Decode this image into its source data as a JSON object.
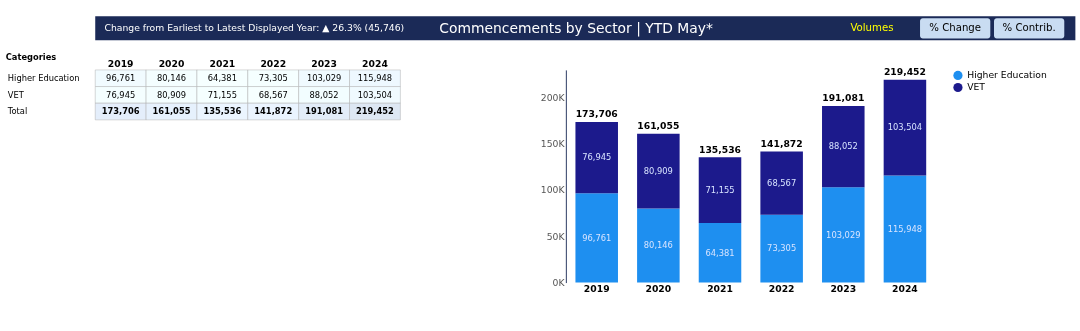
{
  "chart_data": [
    {
      "type": "heatmap",
      "ylabel": "Categories",
      "categories": [
        "2019",
        "2020",
        "2021",
        "2022",
        "2023",
        "2024"
      ],
      "y_categories": [
        "Higher Education",
        "VET",
        "Total"
      ],
      "cells": [
        [
          96761,
          80146,
          64381,
          73305,
          103029,
          115948
        ],
        [
          76945,
          80909,
          71155,
          68567,
          88052,
          103504
        ],
        [
          173706,
          161055,
          135536,
          141872,
          191081,
          219452
        ]
      ],
      "cell_labels": [
        [
          "96,761",
          "80,146",
          "64,381",
          "73,305",
          "103,029",
          "115,948"
        ],
        [
          "76,945",
          "80,909",
          "71,155",
          "68,567",
          "88,052",
          "103,504"
        ],
        [
          "173,706",
          "161,055",
          "135,536",
          "141,872",
          "191,081",
          "219,452"
        ]
      ]
    },
    {
      "type": "bar",
      "title": "Commencements by Sector | YTD May*",
      "categories": [
        "2019",
        "2020",
        "2021",
        "2022",
        "2023",
        "2024"
      ],
      "series": [
        {
          "name": "Higher Education",
          "color": "#1e8ff0",
          "values": [
            96761,
            80146,
            64381,
            73305,
            103029,
            115948
          ],
          "value_labels": [
            "96,761",
            "80,146",
            "64,381",
            "73,305",
            "103,029",
            "115,948"
          ]
        },
        {
          "name": "VET",
          "color": "#1c1a8c",
          "values": [
            76945,
            80909,
            71155,
            68567,
            88052,
            103504
          ],
          "value_labels": [
            "76,945",
            "80,909",
            "71,155",
            "68,567",
            "88,052",
            "103,504"
          ]
        }
      ],
      "stacked": true,
      "totals": [
        "173,706",
        "161,055",
        "135,536",
        "141,872",
        "191,081",
        "219,452"
      ],
      "ylim": [
        0,
        230000
      ],
      "yticks": [
        {
          "value": 0,
          "label": "0K"
        },
        {
          "value": 50000,
          "label": "50K"
        },
        {
          "value": 100000,
          "label": "100K"
        },
        {
          "value": 150000,
          "label": "150K"
        },
        {
          "value": 200000,
          "label": "200K"
        }
      ],
      "legend": "right",
      "grid": false,
      "annotations": [
        "Change from Earliest to Latest Displayed Year: ▲ 26.3% (45,746)",
        "Volumes",
        "% Change",
        "% Contrib."
      ]
    }
  ]
}
